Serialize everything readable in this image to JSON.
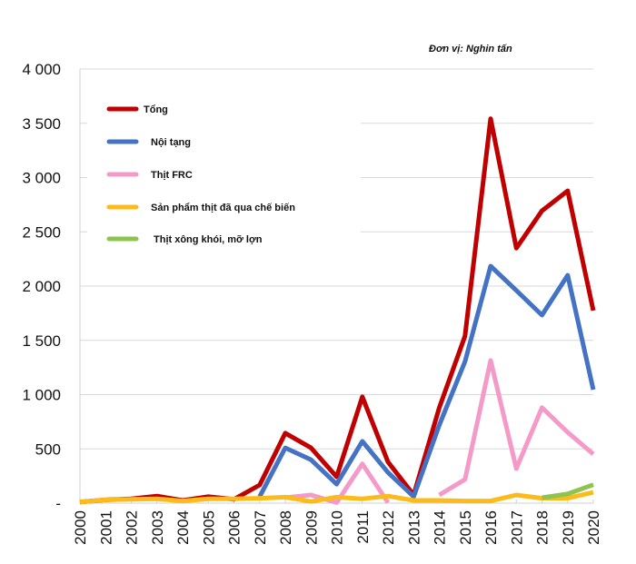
{
  "chart_data": {
    "type": "line",
    "title": "",
    "unit_note": "Đơn vị: Nghin tấn",
    "xlabel": "",
    "ylabel": "",
    "ylim": [
      0,
      4000
    ],
    "y_ticks": [
      0,
      500,
      1000,
      1500,
      2000,
      2500,
      3000,
      3500,
      4000
    ],
    "y_tick_labels": [
      "-",
      "500",
      "1 000",
      "1 500",
      "2 000",
      "2 500",
      "3 000",
      "3 500",
      "4 000"
    ],
    "grid": true,
    "legend_position": "top-left",
    "x": [
      "2000",
      "2001",
      "2002",
      "2003",
      "2004",
      "2005",
      "2006",
      "2007",
      "2008",
      "2009",
      "2010",
      "2011",
      "2012",
      "2013",
      "2014",
      "2015",
      "2016",
      "2017",
      "2018",
      "2019",
      "2020"
    ],
    "series": [
      {
        "name": "Tổng",
        "color": "#c00000",
        "values": [
          10,
          30,
          40,
          65,
          25,
          60,
          35,
          167,
          645,
          510,
          243,
          980,
          380,
          75,
          880,
          1540,
          3542,
          2350,
          2694,
          2878,
          1774
        ]
      },
      {
        "name": "Nội tạng",
        "color": "#4472c4",
        "values": [
          null,
          null,
          null,
          null,
          null,
          null,
          null,
          60,
          510,
          400,
          175,
          570,
          283,
          60,
          720,
          1305,
          2184,
          1960,
          1732,
          2100,
          1045
        ]
      },
      {
        "name": "Thịt FRC",
        "color": "#f49ac9",
        "values": [
          null,
          5,
          null,
          null,
          null,
          null,
          null,
          null,
          50,
          75,
          5,
          362,
          5,
          null,
          75,
          218,
          1315,
          318,
          880,
          653,
          452
        ]
      },
      {
        "name": "Sản phẩm thịt đã qua chế biến",
        "color": "#fbbb1b",
        "values": [
          10,
          30,
          35,
          40,
          20,
          40,
          40,
          45,
          55,
          15,
          55,
          40,
          65,
          25,
          25,
          20,
          20,
          75,
          45,
          45,
          100
        ]
      },
      {
        "name": "Thịt xông khói, mỡ lợn",
        "color": "#8dc44f",
        "values": [
          null,
          null,
          null,
          null,
          null,
          null,
          null,
          null,
          null,
          null,
          null,
          null,
          null,
          null,
          null,
          null,
          null,
          null,
          50,
          85,
          170
        ]
      }
    ]
  }
}
